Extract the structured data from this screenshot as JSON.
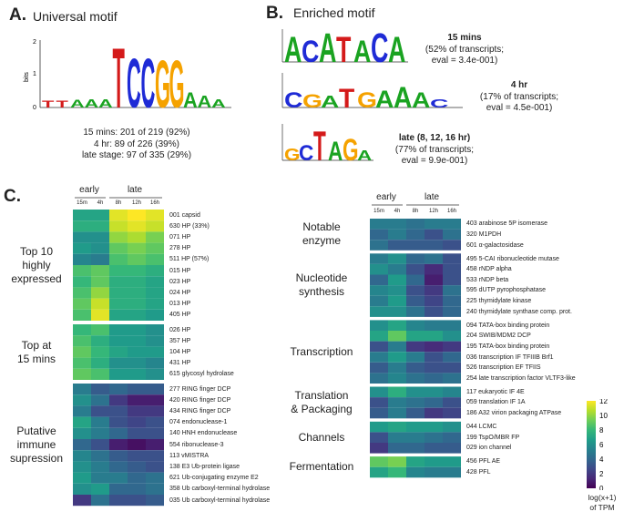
{
  "panels": {
    "a": {
      "letter": "A.",
      "title": "Universal motif"
    },
    "b": {
      "letter": "B.",
      "title": "Enriched motif"
    },
    "c": {
      "letter": "C."
    }
  },
  "logo_axis": {
    "bits": "bits",
    "ymax": "2",
    "ymid": "1",
    "ymin": "0"
  },
  "logo_a": {
    "sequence": "TTAAATCCGGAAA",
    "stats": [
      "15 mins: 201 of 219 (92%)",
      "4 hr: 89 of 226 (39%)",
      "late stage: 97 of 335 (29%)"
    ]
  },
  "logo_b": [
    {
      "sequence": "ACATACA",
      "label_bold": "15 mins",
      "label_rest": [
        "(52% of transcripts;",
        "eval = 3.4e-001)"
      ]
    },
    {
      "sequence": "CGATGAAAC",
      "label_bold": "4 hr",
      "label_rest": [
        "(17% of transcripts;",
        "eval = 4.5e-001)"
      ]
    },
    {
      "sequence": "GCTAGA",
      "label_bold": "late (8, 12, 16 hr)",
      "label_rest": [
        "(77% of transcripts;",
        "eval = 9.9e-001)"
      ]
    }
  ],
  "heatmap_headers": {
    "early": "early",
    "late": "late",
    "cols": [
      "15m",
      "4h",
      "8h",
      "12h",
      "16h"
    ]
  },
  "heatmap_left": {
    "groups": [
      {
        "label": [
          "Top 10",
          "highly",
          "expressed"
        ],
        "genes": [
          "001 capsid",
          "630 HP (33%)",
          "071 HP",
          "278 HP",
          "511 HP (57%)",
          "015 HP",
          "023 HP",
          "024 HP",
          "013 HP",
          "405 HP"
        ],
        "values": [
          [
            7,
            7,
            11.5,
            12,
            11.5
          ],
          [
            7.5,
            7.5,
            11,
            11.5,
            11
          ],
          [
            6,
            6,
            10,
            10.5,
            9.5
          ],
          [
            6.5,
            6,
            9,
            9.5,
            9
          ],
          [
            5.5,
            5,
            8.5,
            9,
            8.5
          ],
          [
            8.5,
            9,
            8,
            8,
            7.5
          ],
          [
            8,
            9,
            7.5,
            7.5,
            7
          ],
          [
            8.5,
            10,
            7.5,
            7.5,
            7
          ],
          [
            9,
            11,
            7.5,
            7.5,
            7
          ],
          [
            8.5,
            11.5,
            7,
            7,
            6.5
          ]
        ]
      },
      {
        "label": [
          "Top at",
          "15 mins"
        ],
        "genes": [
          "026 HP",
          "357 HP",
          "104 HP",
          "431 HP",
          "615 glycosyl hydrolase"
        ],
        "values": [
          [
            8,
            8.5,
            6.5,
            6.5,
            6
          ],
          [
            8.5,
            7.5,
            6.5,
            6.5,
            6
          ],
          [
            9,
            8,
            7,
            6.5,
            6.5
          ],
          [
            8.5,
            7.5,
            6,
            6,
            5.5
          ],
          [
            9,
            8.5,
            6.5,
            6.5,
            6
          ]
        ]
      },
      {
        "label": [
          "Putative",
          "immune",
          "supression"
        ],
        "genes": [
          "277 RING finger DCP",
          "420 RING finger DCP",
          "434 RING finger DCP",
          "074 endonuclease-1",
          "140 HNH endonuclease",
          "554 ribonuclease-3",
          "113 vMISTRA",
          "138 E3 Ub-protein ligase",
          "621 Ub-conjugating enzyme E2",
          "358 Ub carboxyl-terminal hydrolase",
          "035 Ub carboxyl-terminal hydrolase"
        ],
        "values": [
          [
            5,
            3.5,
            4,
            3.5,
            3.5
          ],
          [
            6,
            4.5,
            2,
            1,
            1
          ],
          [
            5,
            3,
            3,
            2,
            2
          ],
          [
            7,
            5,
            3,
            2.5,
            3
          ],
          [
            6,
            5,
            4,
            3,
            3
          ],
          [
            4,
            3,
            1,
            0.5,
            1
          ],
          [
            5.5,
            4.5,
            3.5,
            3,
            3
          ],
          [
            6,
            5,
            4,
            3.5,
            3
          ],
          [
            6.5,
            5,
            5,
            4,
            4.5
          ],
          [
            6,
            6.5,
            4,
            4,
            4.5
          ],
          [
            2,
            4.5,
            3,
            3,
            3.5
          ]
        ]
      }
    ]
  },
  "heatmap_right": {
    "groups": [
      {
        "label": [
          "Notable",
          "enzyme"
        ],
        "genes": [
          "403 arabinose 5P isomerase",
          "320 M1PDH",
          "601 α-galactosidase"
        ],
        "values": [
          [
            5,
            5,
            4.5,
            5,
            5
          ],
          [
            4,
            5,
            4,
            3,
            4.5
          ],
          [
            4.5,
            3.5,
            3.5,
            3.5,
            3
          ]
        ]
      },
      {
        "label": [
          "Nucleotide",
          "synthesis"
        ],
        "genes": [
          "495 5-CAI ribonucleotide mutase",
          "458 rNDP alpha",
          "533 rNDP beta",
          "595 dUTP pyrophosphatase",
          "225 thymidylate kinase",
          "240 thymidylate synthase comp. prot."
        ],
        "values": [
          [
            5,
            6,
            4,
            4.5,
            3
          ],
          [
            6,
            5,
            3,
            1.5,
            3
          ],
          [
            4,
            6.5,
            4,
            1,
            3
          ],
          [
            5.5,
            6,
            3,
            2,
            4.5
          ],
          [
            5,
            6.5,
            3.5,
            2.5,
            4
          ],
          [
            6,
            6,
            4.5,
            3,
            4
          ]
        ]
      },
      {
        "label": [
          "Transcription"
        ],
        "genes": [
          "094 TATA-box binding protein",
          "204 SWIB/MDM2 DCP",
          "195 TATA-box binding protein",
          "036 transcription IF TFIIIB Brf1",
          "526 transcription EF TFIIS",
          "254 late transcription factor VLTF3-like"
        ],
        "values": [
          [
            6,
            7,
            5.5,
            5,
            5
          ],
          [
            7,
            9,
            7,
            7,
            6
          ],
          [
            3,
            5,
            2,
            1.5,
            2
          ],
          [
            5,
            6.5,
            5,
            3,
            4
          ],
          [
            3.5,
            5,
            3.5,
            3,
            3
          ],
          [
            4.5,
            5.5,
            4.5,
            4,
            4.5
          ]
        ]
      },
      {
        "label": [
          "Translation",
          "& Packaging"
        ],
        "genes": [
          "117 eukaryotic IF 4E",
          "059 translation IF 1A",
          "186 A32 virion packaging ATPase"
        ],
        "values": [
          [
            6,
            7.5,
            6,
            6,
            5.5
          ],
          [
            3,
            5,
            4.5,
            4,
            3
          ],
          [
            3.5,
            5,
            3.5,
            2,
            2.5
          ]
        ]
      },
      {
        "label": [
          "Channels"
        ],
        "genes": [
          "044 LCMC",
          "199 TspO/MBR FP",
          "029 ion channel"
        ],
        "values": [
          [
            6.5,
            7,
            6.5,
            6.5,
            6
          ],
          [
            3,
            5,
            5,
            4.5,
            4
          ],
          [
            2,
            4,
            4,
            3.5,
            3.5
          ]
        ]
      },
      {
        "label": [
          "Fermentation"
        ],
        "genes": [
          "456 PFL AE",
          "428 PFL"
        ],
        "values": [
          [
            9,
            9.5,
            7,
            6.5,
            6.5
          ],
          [
            7,
            8,
            5.5,
            5,
            5
          ]
        ]
      }
    ]
  },
  "colorbar": {
    "ticks": [
      "12",
      "10",
      "8",
      "6",
      "4",
      "2",
      "0"
    ],
    "label": [
      "log(x+1)",
      "of TPM"
    ],
    "stops": [
      "#fde725",
      "#b5de2b",
      "#6ece58",
      "#35b779",
      "#1f9e89",
      "#26828e",
      "#31688e",
      "#3e4989",
      "#482878",
      "#440154"
    ]
  },
  "colors": {
    "A": "#1aa321",
    "C": "#1f2bd6",
    "G": "#f5a200",
    "T": "#d41a1a"
  }
}
